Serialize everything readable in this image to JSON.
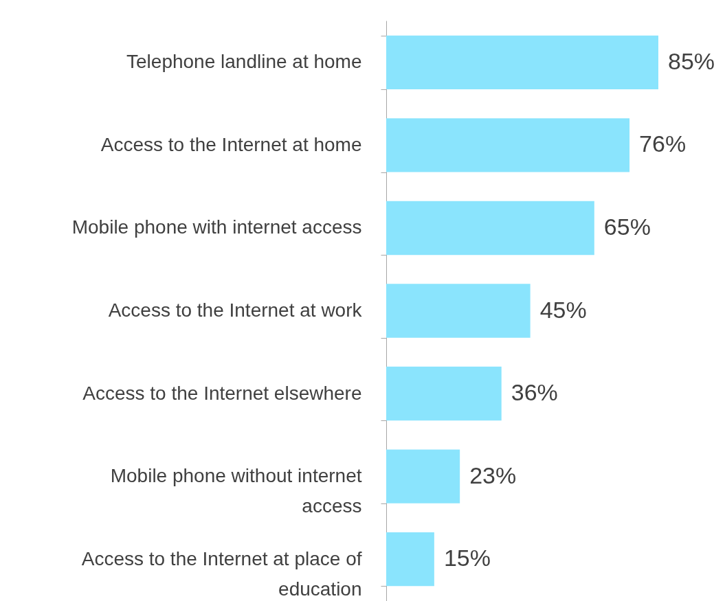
{
  "chart_data": {
    "type": "bar",
    "orientation": "horizontal",
    "categories": [
      "Telephone landline at home",
      "Access to the Internet at home",
      "Mobile phone with internet access",
      "Access to the Internet at work",
      "Access to the Internet elsewhere",
      "Mobile phone without internet access",
      "Access to the Internet at place of education"
    ],
    "values": [
      85,
      76,
      65,
      45,
      36,
      23,
      15
    ],
    "value_labels": [
      "85%",
      "76%",
      "65%",
      "45%",
      "36%",
      "23%",
      "15%"
    ],
    "color": "#8ae4fd"
  }
}
